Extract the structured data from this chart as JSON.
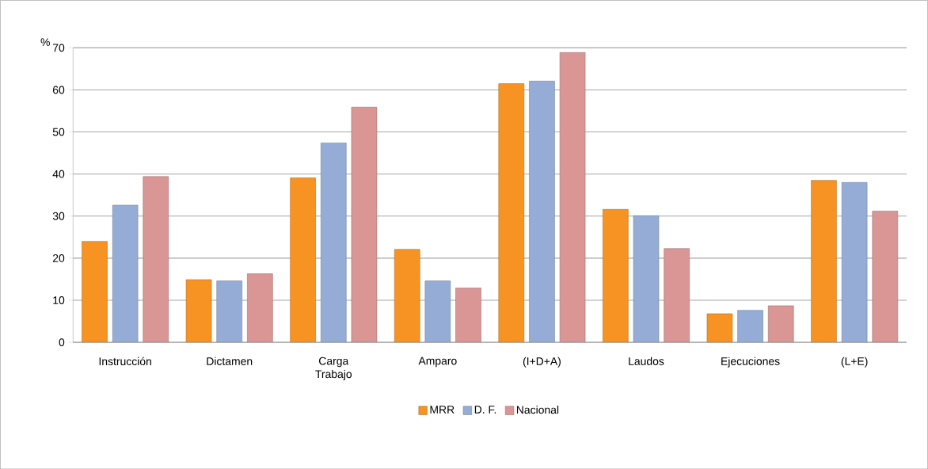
{
  "chart_data": {
    "type": "bar",
    "ylabel": "%",
    "categories": [
      "Instrucción",
      "Dictamen",
      "Carga Trabajo",
      "Amparo",
      "(I+D+A)",
      "Laudos",
      "Ejecuciones",
      "(L+E)"
    ],
    "series": [
      {
        "name": "MRR",
        "color": "#f79323",
        "values": [
          24.0,
          14.9,
          39.1,
          22.1,
          61.5,
          31.6,
          6.8,
          38.5
        ]
      },
      {
        "name": "D. F.",
        "color": "#95add6",
        "values": [
          32.6,
          14.6,
          47.4,
          14.6,
          62.1,
          30.1,
          7.6,
          38.0
        ]
      },
      {
        "name": "Nacional",
        "color": "#d99694",
        "values": [
          39.4,
          16.3,
          55.9,
          12.9,
          68.9,
          22.3,
          8.7,
          31.2
        ]
      }
    ],
    "ylim": [
      0,
      70
    ],
    "yticks": [
      0,
      10,
      20,
      30,
      40,
      50,
      60,
      70
    ],
    "grid": "y",
    "legend": "bottom"
  }
}
